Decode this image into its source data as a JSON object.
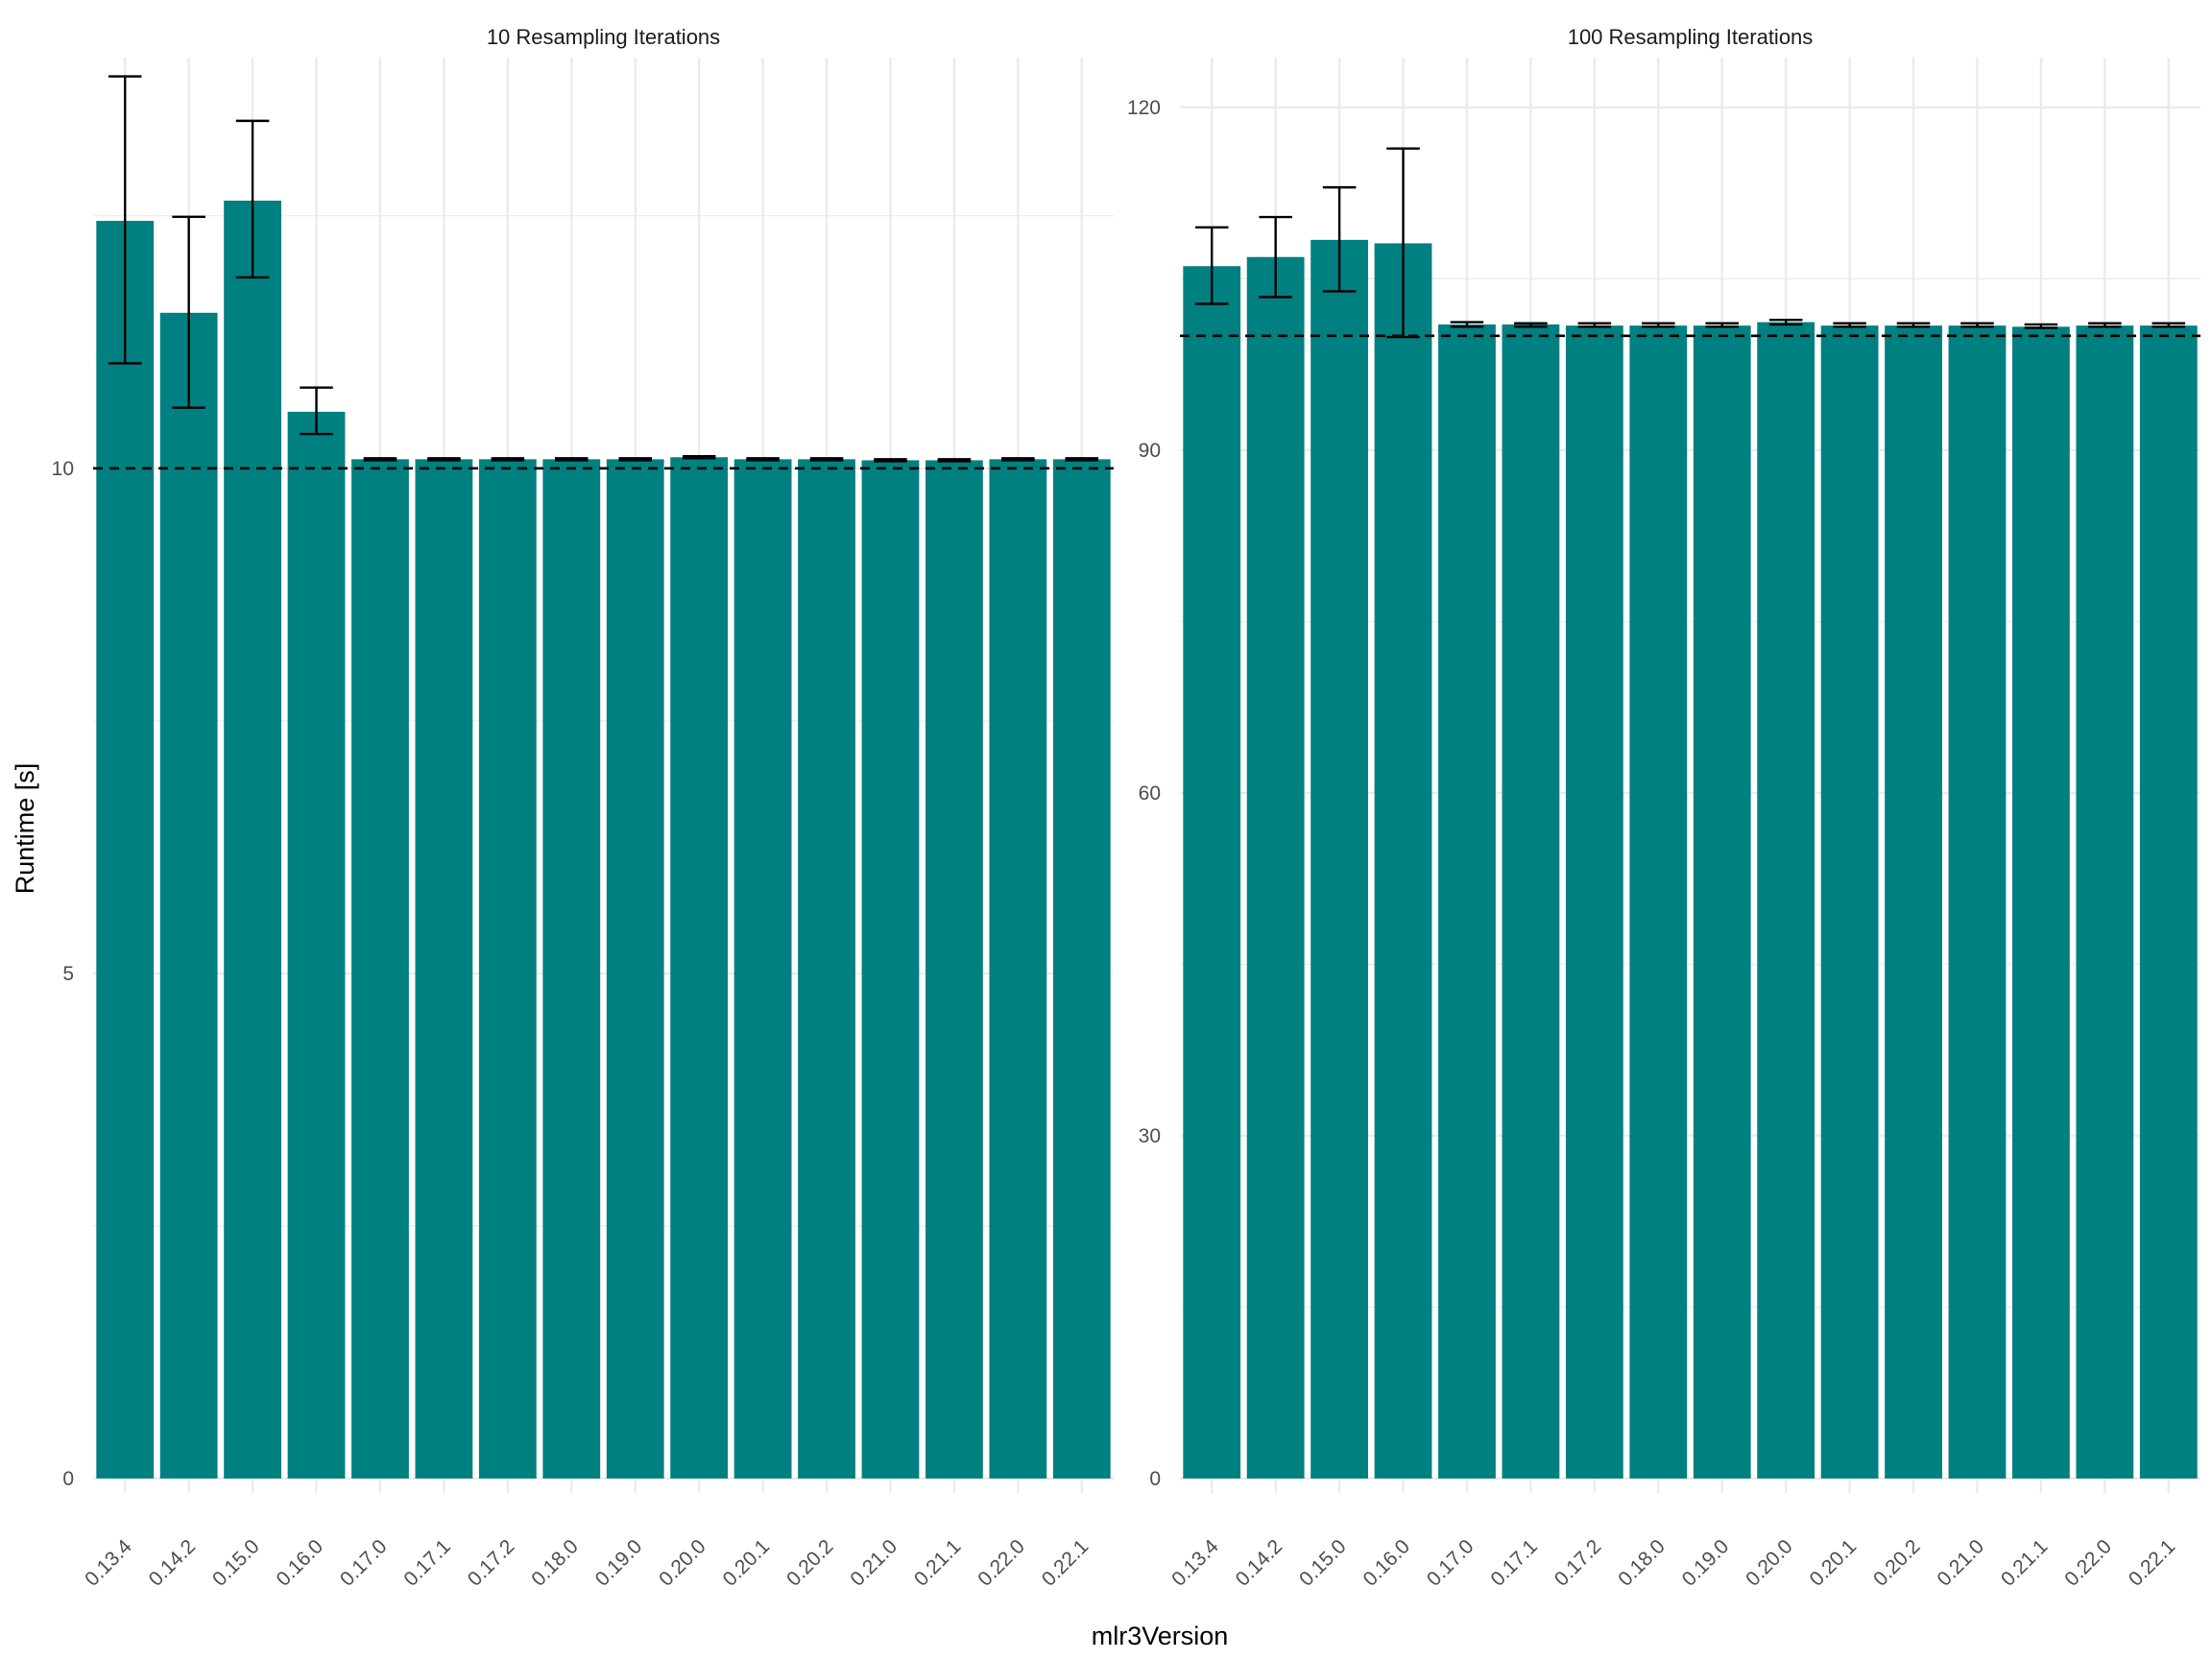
{
  "chart_data": {
    "type": "bar",
    "xlabel": "mlr3Version",
    "ylabel": "Runtime [s]",
    "colors": {
      "bar": "#008080",
      "error_bar": "#000000",
      "reference_line": "#000000",
      "grid": "#ebebeb"
    },
    "categories": [
      "0.13.4",
      "0.14.2",
      "0.15.0",
      "0.16.0",
      "0.17.0",
      "0.17.1",
      "0.17.2",
      "0.18.0",
      "0.19.0",
      "0.20.0",
      "0.20.1",
      "0.20.2",
      "0.21.0",
      "0.21.1",
      "0.22.0",
      "0.22.1"
    ],
    "panels": [
      {
        "title": "10 Resampling Iterations",
        "ylim": [
          0,
          13.8
        ],
        "yticks": [
          0,
          5,
          10
        ],
        "reference_line": 10,
        "values": [
          12.45,
          11.54,
          12.65,
          10.56,
          10.09,
          10.09,
          10.09,
          10.09,
          10.09,
          10.11,
          10.09,
          10.09,
          10.08,
          10.08,
          10.09,
          10.09
        ],
        "error_low": [
          11.04,
          10.6,
          11.89,
          10.34,
          10.08,
          10.08,
          10.08,
          10.08,
          10.08,
          10.1,
          10.08,
          10.08,
          10.07,
          10.07,
          10.08,
          10.08
        ],
        "error_high": [
          13.88,
          12.49,
          13.44,
          10.8,
          10.1,
          10.1,
          10.1,
          10.1,
          10.1,
          10.12,
          10.1,
          10.1,
          10.09,
          10.09,
          10.1,
          10.1
        ]
      },
      {
        "title": "100 Resampling Iterations",
        "ylim": [
          0,
          122
        ],
        "yticks": [
          0,
          30,
          60,
          90,
          120
        ],
        "reference_line": 100,
        "values": [
          106.1,
          106.9,
          108.4,
          108.1,
          101.0,
          101.0,
          100.9,
          100.9,
          100.9,
          101.2,
          100.9,
          100.9,
          100.9,
          100.8,
          100.9,
          100.9
        ],
        "error_low": [
          102.8,
          103.4,
          103.9,
          99.9,
          100.8,
          100.8,
          100.8,
          100.8,
          100.8,
          101.0,
          100.8,
          100.8,
          100.8,
          100.7,
          100.8,
          100.8
        ],
        "error_high": [
          109.5,
          110.4,
          113.0,
          116.4,
          101.2,
          101.1,
          101.1,
          101.1,
          101.1,
          101.4,
          101.1,
          101.1,
          101.1,
          101.0,
          101.1,
          101.1
        ]
      }
    ]
  }
}
